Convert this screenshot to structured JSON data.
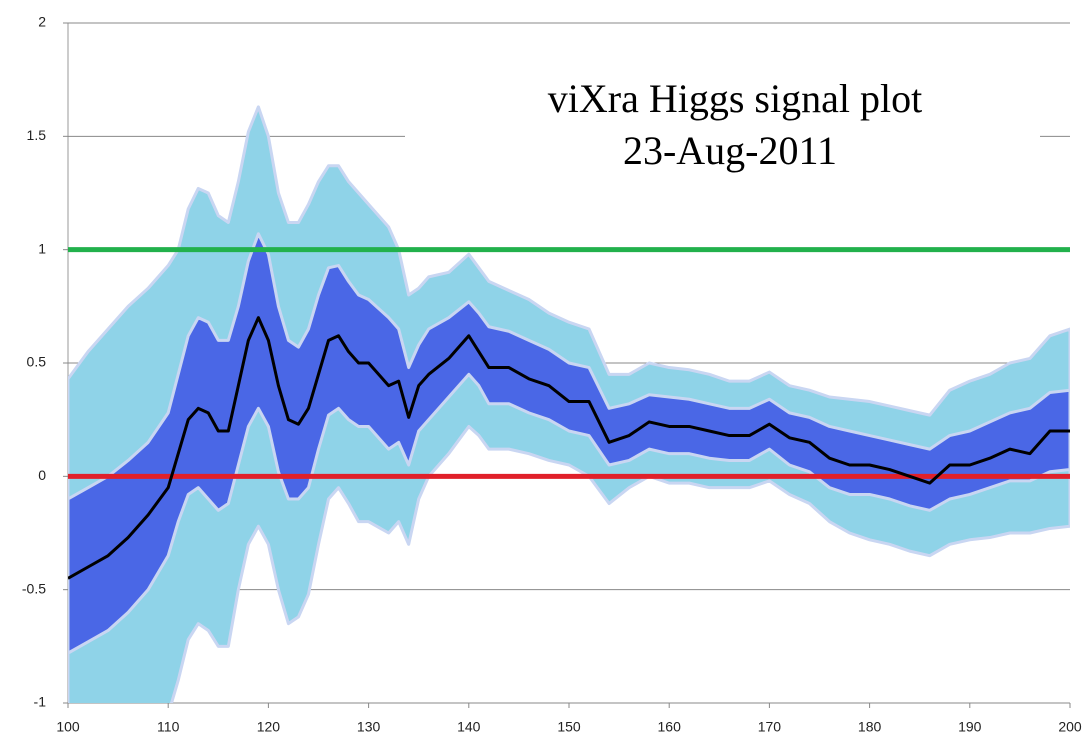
{
  "chart_data": {
    "type": "line",
    "title": "viXra Higgs signal plot",
    "subtitle": "23-Aug-2011",
    "x": [
      100,
      102,
      104,
      106,
      108,
      110,
      111,
      112,
      113,
      114,
      115,
      116,
      117,
      118,
      119,
      120,
      121,
      122,
      123,
      124,
      125,
      126,
      127,
      128,
      129,
      130,
      132,
      133,
      134,
      135,
      136,
      138,
      140,
      141,
      142,
      144,
      146,
      148,
      150,
      152,
      154,
      156,
      158,
      160,
      162,
      164,
      166,
      168,
      170,
      172,
      174,
      176,
      178,
      180,
      182,
      184,
      186,
      188,
      190,
      192,
      194,
      196,
      198,
      200
    ],
    "series": [
      {
        "color": "#000000",
        "values": [
          -0.45,
          -0.4,
          -0.35,
          -0.27,
          -0.17,
          -0.05,
          0.1,
          0.25,
          0.3,
          0.28,
          0.2,
          0.2,
          0.4,
          0.6,
          0.7,
          0.6,
          0.4,
          0.25,
          0.23,
          0.3,
          0.45,
          0.6,
          0.62,
          0.55,
          0.5,
          0.5,
          0.4,
          0.42,
          0.26,
          0.4,
          0.45,
          0.52,
          0.62,
          0.55,
          0.48,
          0.48,
          0.43,
          0.4,
          0.33,
          0.33,
          0.15,
          0.18,
          0.24,
          0.22,
          0.22,
          0.2,
          0.18,
          0.18,
          0.23,
          0.17,
          0.15,
          0.08,
          0.05,
          0.05,
          0.03,
          0.0,
          -0.03,
          0.05,
          0.05,
          0.08,
          0.12,
          0.1,
          0.2,
          0.2
        ]
      }
    ],
    "bands": [
      {
        "color": "#8fd3e8",
        "upper": [
          0.43,
          0.55,
          0.65,
          0.75,
          0.83,
          0.93,
          1.0,
          1.18,
          1.27,
          1.25,
          1.15,
          1.12,
          1.3,
          1.52,
          1.63,
          1.5,
          1.25,
          1.12,
          1.12,
          1.2,
          1.3,
          1.37,
          1.37,
          1.3,
          1.25,
          1.2,
          1.1,
          1.0,
          0.8,
          0.83,
          0.88,
          0.9,
          0.98,
          0.92,
          0.86,
          0.82,
          0.78,
          0.72,
          0.68,
          0.65,
          0.45,
          0.45,
          0.5,
          0.48,
          0.47,
          0.45,
          0.42,
          0.42,
          0.46,
          0.4,
          0.38,
          0.35,
          0.34,
          0.33,
          0.31,
          0.29,
          0.27,
          0.38,
          0.42,
          0.45,
          0.5,
          0.52,
          0.62,
          0.65
        ],
        "lower": [
          -1.1,
          -1.1,
          -1.1,
          -1.1,
          -1.1,
          -1.05,
          -0.9,
          -0.72,
          -0.65,
          -0.68,
          -0.75,
          -0.75,
          -0.5,
          -0.3,
          -0.22,
          -0.3,
          -0.5,
          -0.65,
          -0.62,
          -0.52,
          -0.3,
          -0.1,
          -0.05,
          -0.12,
          -0.2,
          -0.2,
          -0.25,
          -0.2,
          -0.3,
          -0.1,
          0.0,
          0.1,
          0.22,
          0.18,
          0.12,
          0.12,
          0.1,
          0.07,
          0.05,
          0.0,
          -0.12,
          -0.05,
          0.0,
          -0.03,
          -0.03,
          -0.05,
          -0.05,
          -0.05,
          -0.02,
          -0.08,
          -0.12,
          -0.2,
          -0.25,
          -0.28,
          -0.3,
          -0.33,
          -0.35,
          -0.3,
          -0.28,
          -0.27,
          -0.25,
          -0.25,
          -0.23,
          -0.22
        ]
      },
      {
        "color": "#4a67e6",
        "upper": [
          -0.1,
          -0.05,
          0.0,
          0.07,
          0.15,
          0.28,
          0.45,
          0.62,
          0.7,
          0.68,
          0.6,
          0.6,
          0.75,
          0.95,
          1.07,
          0.98,
          0.75,
          0.6,
          0.57,
          0.65,
          0.8,
          0.92,
          0.93,
          0.86,
          0.8,
          0.78,
          0.7,
          0.65,
          0.48,
          0.58,
          0.65,
          0.7,
          0.77,
          0.72,
          0.66,
          0.64,
          0.6,
          0.56,
          0.5,
          0.48,
          0.3,
          0.32,
          0.36,
          0.35,
          0.34,
          0.32,
          0.3,
          0.3,
          0.34,
          0.28,
          0.26,
          0.22,
          0.2,
          0.18,
          0.16,
          0.14,
          0.12,
          0.18,
          0.2,
          0.24,
          0.28,
          0.3,
          0.37,
          0.38
        ],
        "lower": [
          -0.78,
          -0.73,
          -0.68,
          -0.6,
          -0.5,
          -0.35,
          -0.2,
          -0.08,
          -0.05,
          -0.1,
          -0.15,
          -0.12,
          0.05,
          0.22,
          0.3,
          0.22,
          0.02,
          -0.1,
          -0.1,
          -0.05,
          0.12,
          0.27,
          0.3,
          0.25,
          0.22,
          0.22,
          0.12,
          0.15,
          0.05,
          0.2,
          0.25,
          0.35,
          0.45,
          0.4,
          0.32,
          0.32,
          0.28,
          0.25,
          0.2,
          0.18,
          0.05,
          0.07,
          0.12,
          0.1,
          0.1,
          0.08,
          0.07,
          0.07,
          0.12,
          0.05,
          0.02,
          -0.05,
          -0.08,
          -0.08,
          -0.1,
          -0.13,
          -0.15,
          -0.1,
          -0.08,
          -0.05,
          -0.02,
          -0.02,
          0.02,
          0.03
        ]
      }
    ],
    "hlines": [
      {
        "value": 1,
        "color": "#22b14c"
      },
      {
        "value": 0,
        "color": "#e0202a"
      }
    ],
    "xlim": [
      100,
      200
    ],
    "xticks": [
      100,
      110,
      120,
      130,
      140,
      150,
      160,
      170,
      180,
      190,
      200
    ],
    "ylim": [
      -1,
      2
    ],
    "yticks": [
      -1,
      -0.5,
      0,
      0.5,
      1,
      1.5,
      2
    ],
    "grid": true
  }
}
